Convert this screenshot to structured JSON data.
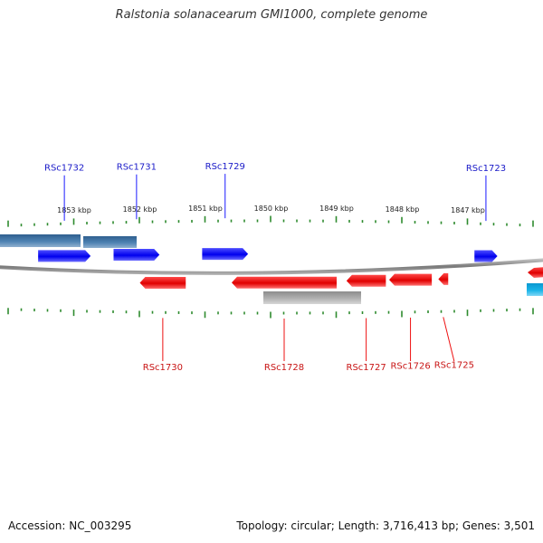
{
  "title": "Ralstonia solanacearum GMI1000, complete genome",
  "footer": {
    "accession": "Accession: NC_003295",
    "summary": "Topology: circular; Length: 3,716,413 bp; Genes: 3,501"
  },
  "colors": {
    "forward_gene": "#1a1aff",
    "reverse_gene": "#ee1111",
    "forward_other": "#4d7fae",
    "reverse_other": "#a8a8a8",
    "cyan_feature": "#19b4e8",
    "tick": "#2e8b2e",
    "backbone": "#888888"
  },
  "scale": {
    "unit": "kbp",
    "labels": [
      {
        "pos": 1853,
        "text": "1853 kbp"
      },
      {
        "pos": 1852,
        "text": "1852 kbp"
      },
      {
        "pos": 1851,
        "text": "1851 kbp"
      },
      {
        "pos": 1850,
        "text": "1850 kbp"
      },
      {
        "pos": 1849,
        "text": "1849 kbp"
      },
      {
        "pos": 1848,
        "text": "1848 kbp"
      },
      {
        "pos": 1847,
        "text": "1847 kbp"
      }
    ]
  },
  "genes_forward": [
    {
      "label": "RSc1732",
      "start": 1853.55,
      "end": 1852.75
    },
    {
      "label": "RSc1731",
      "start": 1852.4,
      "end": 1851.7
    },
    {
      "label": "RSc1729",
      "start": 1851.05,
      "end": 1850.35
    },
    {
      "label": "RSc1723",
      "start": 1846.9,
      "end": 1846.55
    }
  ],
  "genes_reverse": [
    {
      "label": "RSc1730",
      "start": 1852.0,
      "end": 1851.3
    },
    {
      "label": "RSc1728",
      "start": 1850.6,
      "end": 1849.0
    },
    {
      "label": "RSc1727",
      "start": 1848.85,
      "end": 1848.25
    },
    {
      "label": "RSc1726",
      "start": 1848.2,
      "end": 1847.55
    },
    {
      "label": "RSc1725",
      "start": 1847.45,
      "end": 1847.3
    }
  ]
}
